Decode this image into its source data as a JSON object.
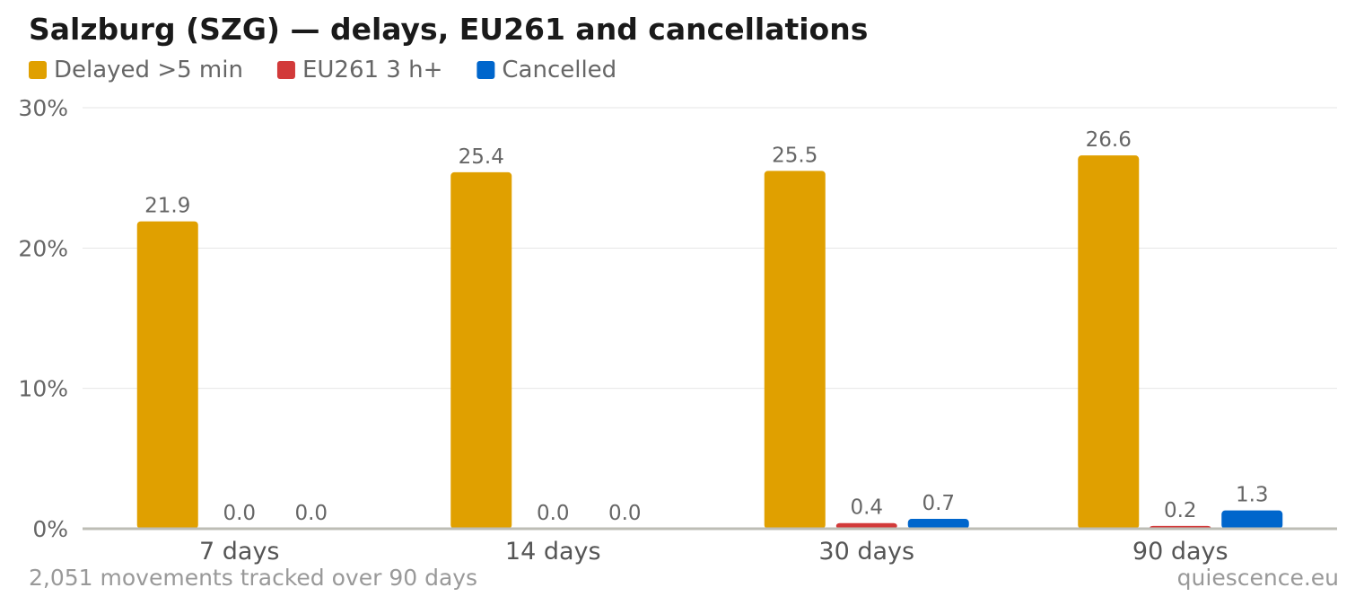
{
  "chart_data": {
    "type": "bar",
    "title": "Salzburg (SZG) — delays, EU261 and cancellations",
    "categories": [
      "7 days",
      "14 days",
      "30 days",
      "90 days"
    ],
    "series": [
      {
        "name": "Delayed >5 min",
        "color": "#e0a000",
        "values": [
          21.9,
          25.4,
          25.5,
          26.6
        ],
        "labels": [
          "21.9",
          "25.4",
          "25.5",
          "26.6"
        ]
      },
      {
        "name": "EU261 3 h+",
        "color": "#d23a3a",
        "values": [
          0.0,
          0.0,
          0.4,
          0.2
        ],
        "labels": [
          "0.0",
          "0.0",
          "0.4",
          "0.2"
        ]
      },
      {
        "name": "Cancelled",
        "color": "#0066cc",
        "values": [
          0.0,
          0.0,
          0.7,
          1.3
        ],
        "labels": [
          "0.0",
          "0.0",
          "0.7",
          "1.3"
        ]
      }
    ],
    "ylim": [
      0,
      30
    ],
    "yticks": [
      0,
      10,
      20,
      30
    ],
    "ytick_labels": [
      "0%",
      "10%",
      "20%",
      "30%"
    ],
    "grid": true,
    "legend_position": "top-left"
  },
  "footer": {
    "note": "2,051 movements tracked over 90 days",
    "source": "quiescence.eu"
  }
}
